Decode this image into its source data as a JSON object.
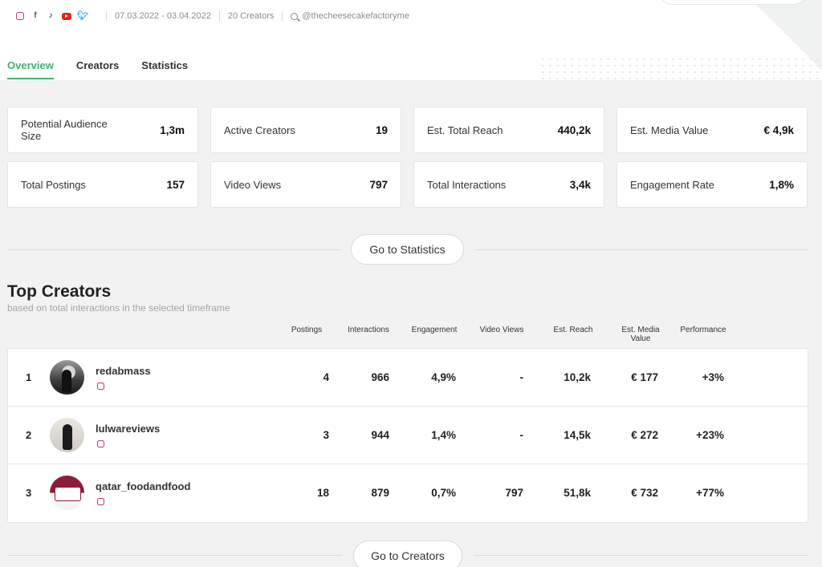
{
  "header": {
    "social_icons": [
      "instagram-icon",
      "facebook-icon",
      "tiktok-icon",
      "youtube-icon",
      "twitter-icon"
    ],
    "date_range": "07.03.2022 - 03.04.2022",
    "creators_count": "20 Creators",
    "search_handle": "@thecheesecakefactoryme"
  },
  "tabs": [
    {
      "label": "Overview",
      "active": true
    },
    {
      "label": "Creators",
      "active": false
    },
    {
      "label": "Statistics",
      "active": false
    }
  ],
  "kpis": [
    {
      "label": "Potential Audience Size",
      "value": "1,3m"
    },
    {
      "label": "Active Creators",
      "value": "19"
    },
    {
      "label": "Est. Total Reach",
      "value": "440,2k"
    },
    {
      "label": "Est. Media Value",
      "value": "€ 4,9k"
    },
    {
      "label": "Total Postings",
      "value": "157"
    },
    {
      "label": "Video Views",
      "value": "797"
    },
    {
      "label": "Total Interactions",
      "value": "3,4k"
    },
    {
      "label": "Engagement Rate",
      "value": "1,8%"
    }
  ],
  "go_to_statistics": "Go to Statistics",
  "top_creators": {
    "title": "Top Creators",
    "subtitle": "based on total interactions in the selected timeframe",
    "columns": [
      "Postings",
      "Interactions",
      "Engagement",
      "Video Views",
      "Est. Reach",
      "Est. Media Value",
      "Performance"
    ],
    "rows": [
      {
        "rank": "1",
        "name": "redabmass",
        "postings": "4",
        "interactions": "966",
        "engagement": "4,9%",
        "video_views": "-",
        "reach": "10,2k",
        "media_value": "€ 177",
        "performance": "+3%"
      },
      {
        "rank": "2",
        "name": "lulwareviews",
        "postings": "3",
        "interactions": "944",
        "engagement": "1,4%",
        "video_views": "-",
        "reach": "14,5k",
        "media_value": "€ 272",
        "performance": "+23%"
      },
      {
        "rank": "3",
        "name": "qatar_foodandfood",
        "postings": "18",
        "interactions": "879",
        "engagement": "0,7%",
        "video_views": "797",
        "reach": "51,8k",
        "media_value": "€ 732",
        "performance": "+77%"
      }
    ]
  },
  "go_to_creators": "Go to Creators",
  "colors": {
    "accent": "#3fb26d",
    "instagram": "#c13584"
  }
}
